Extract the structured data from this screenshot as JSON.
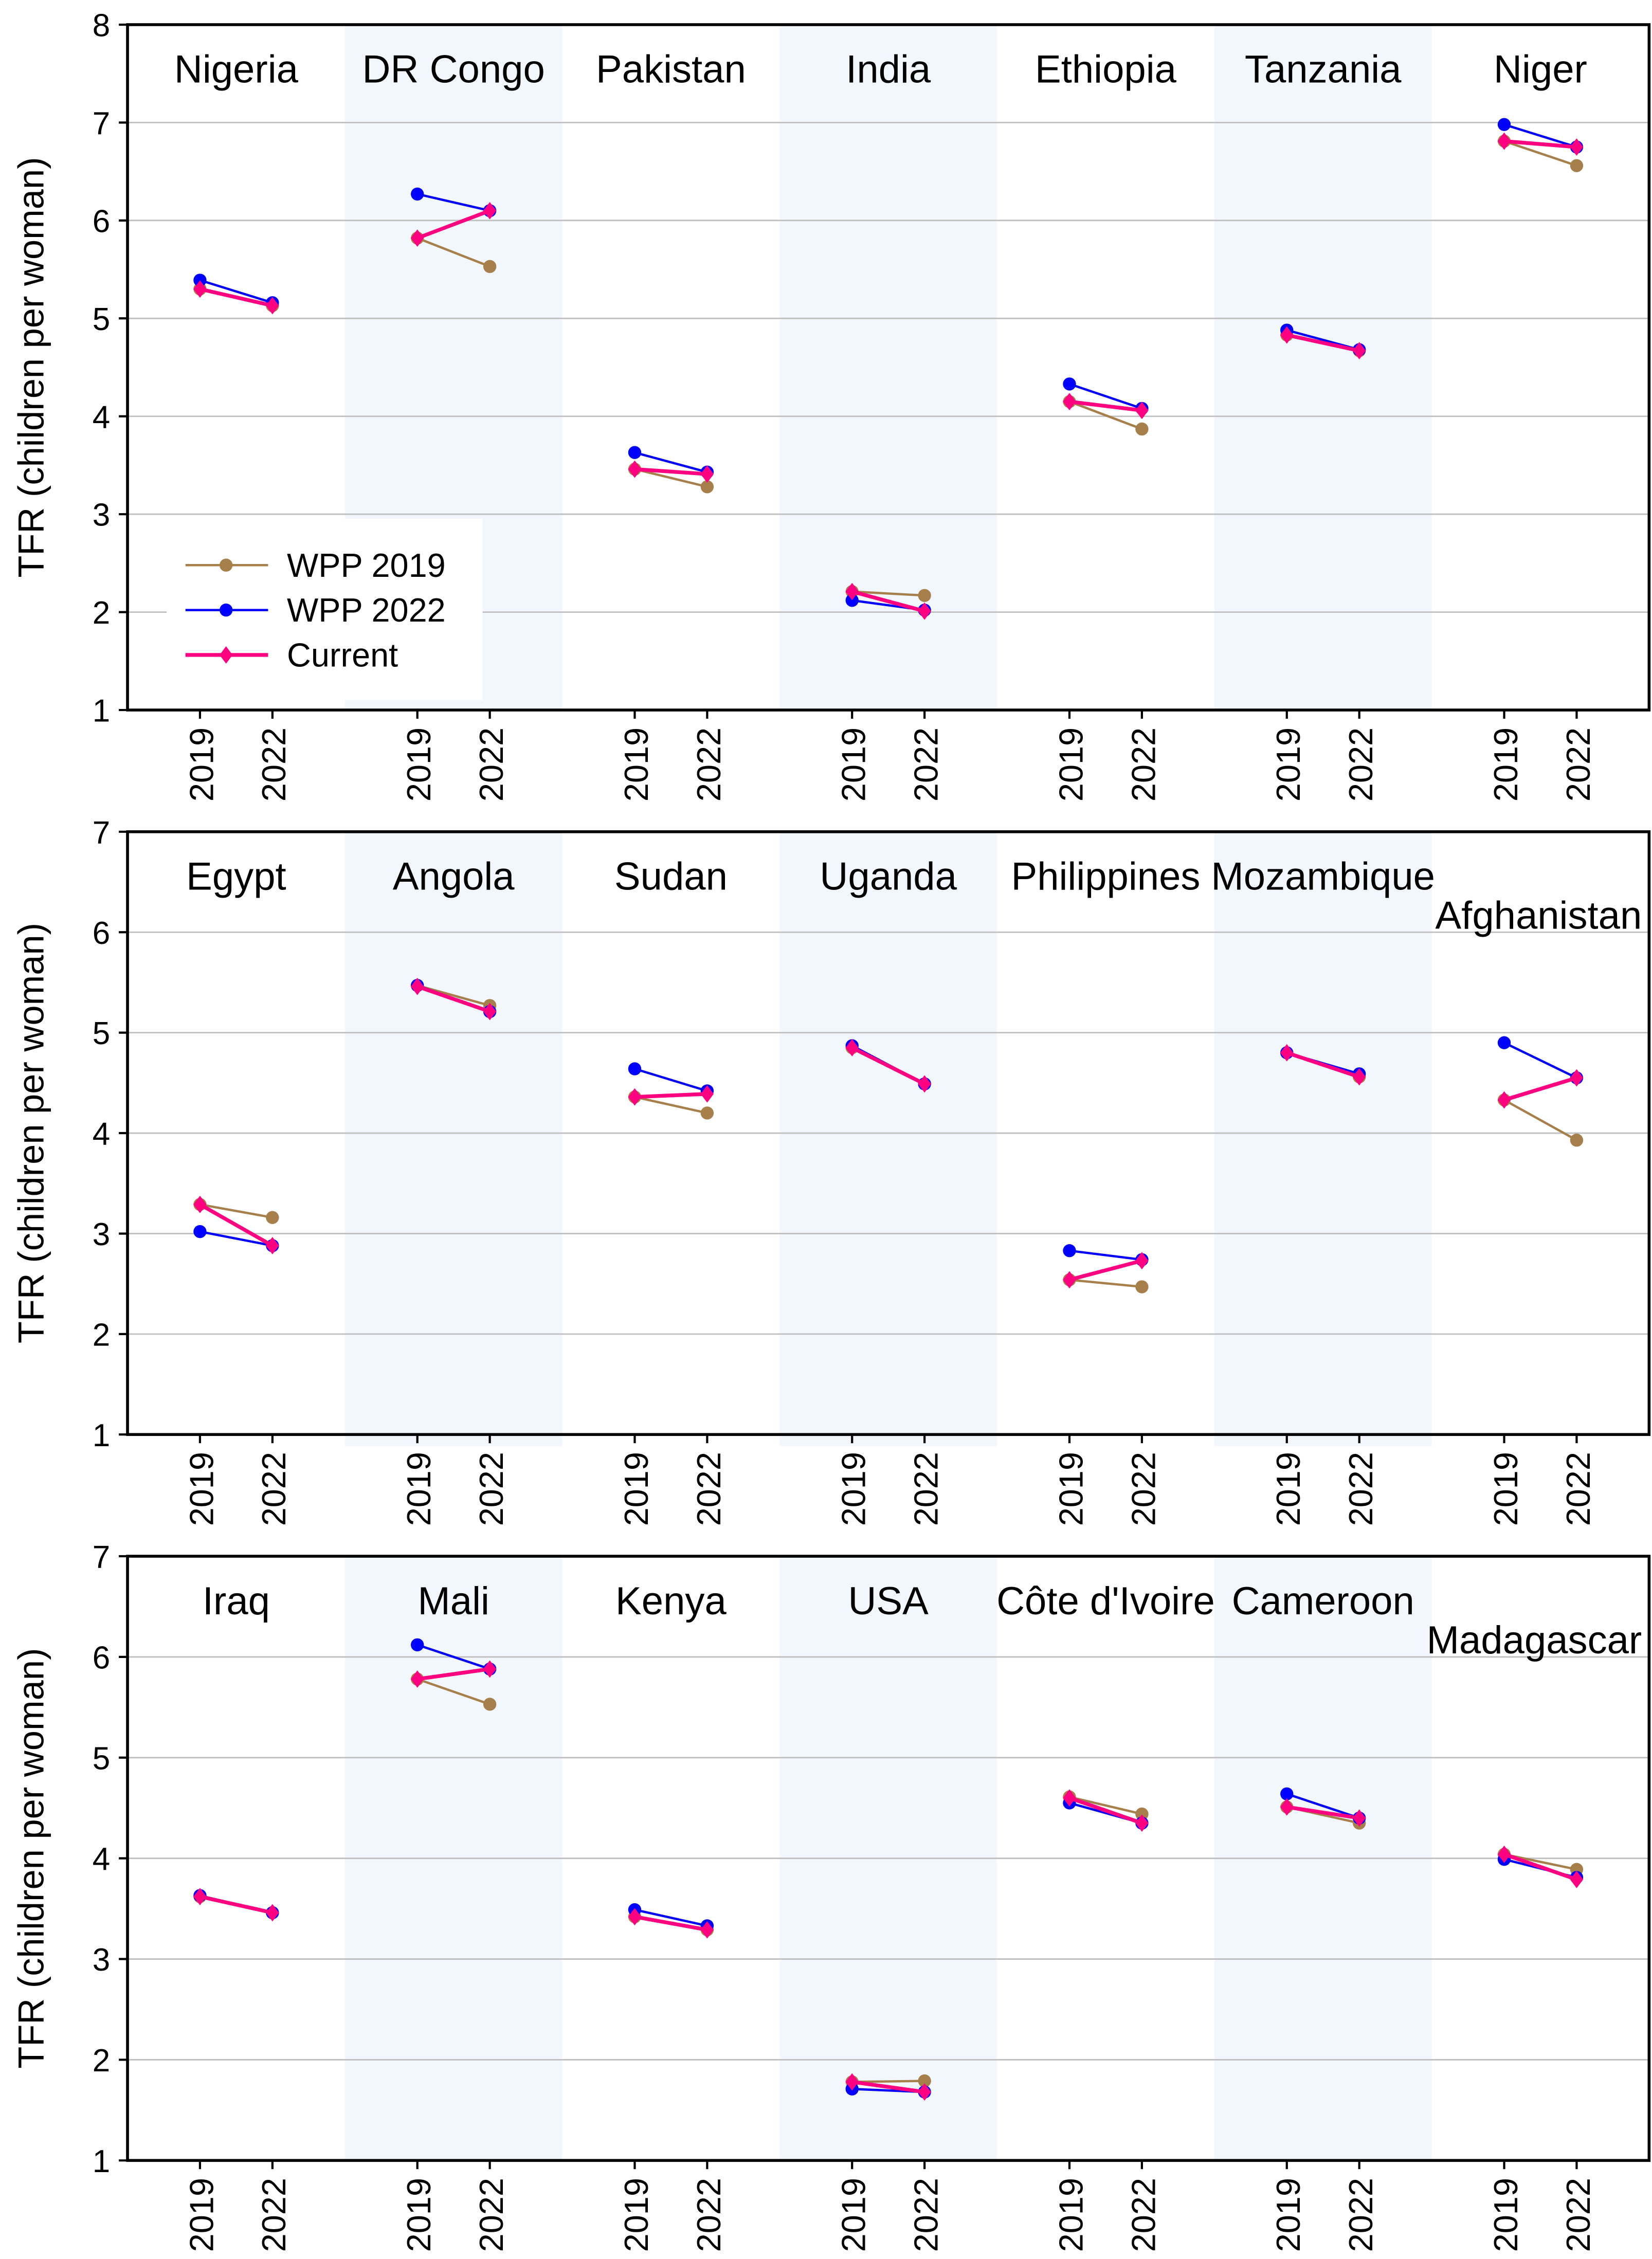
{
  "chart_data": {
    "type": "line",
    "ylabel": "TFR (children per woman)",
    "x_ticks": [
      "2019",
      "2022"
    ],
    "legend": {
      "placement": "bottom-left of first panel",
      "entries": [
        "WPP 2019",
        "WPP 2022",
        "Current"
      ]
    },
    "colors": {
      "WPP 2019": "#A67F4A",
      "WPP 2022": "#0000FF",
      "Current": "#FF0080",
      "shade": "#F2F7FE",
      "grid": "#BFBFBF"
    },
    "panels": [
      {
        "ylim": [
          1,
          8
        ],
        "yticks": [
          "1",
          "2",
          "3",
          "4",
          "5",
          "6",
          "7",
          "8"
        ],
        "countries": [
          {
            "name": "Nigeria",
            "wpp2019": [
              5.3,
              5.13
            ],
            "wpp2022": [
              5.39,
              5.16
            ],
            "current": [
              5.3,
              5.13
            ]
          },
          {
            "name": "DR Congo",
            "wpp2019": [
              5.82,
              5.53
            ],
            "wpp2022": [
              6.27,
              6.1
            ],
            "current": [
              5.82,
              6.1
            ]
          },
          {
            "name": "Pakistan",
            "wpp2019": [
              3.46,
              3.28
            ],
            "wpp2022": [
              3.63,
              3.43
            ],
            "current": [
              3.46,
              3.41
            ]
          },
          {
            "name": "India",
            "wpp2019": [
              2.21,
              2.17
            ],
            "wpp2022": [
              2.12,
              2.02
            ],
            "current": [
              2.21,
              2.01
            ]
          },
          {
            "name": "Ethiopia",
            "wpp2019": [
              4.15,
              3.87
            ],
            "wpp2022": [
              4.33,
              4.08
            ],
            "current": [
              4.15,
              4.06
            ]
          },
          {
            "name": "Tanzania",
            "wpp2019": [
              4.83,
              4.67
            ],
            "wpp2022": [
              4.88,
              4.68
            ],
            "current": [
              4.83,
              4.67
            ]
          },
          {
            "name": "Niger",
            "wpp2019": [
              6.81,
              6.56
            ],
            "wpp2022": [
              6.98,
              6.75
            ],
            "current": [
              6.81,
              6.75
            ]
          }
        ]
      },
      {
        "ylim": [
          1,
          7
        ],
        "yticks": [
          "1",
          "2",
          "3",
          "4",
          "5",
          "6",
          "7"
        ],
        "countries": [
          {
            "name": "Egypt",
            "wpp2019": [
              3.29,
              3.16
            ],
            "wpp2022": [
              3.02,
              2.88
            ],
            "current": [
              3.29,
              2.88
            ]
          },
          {
            "name": "Angola",
            "wpp2019": [
              5.47,
              5.27
            ],
            "wpp2022": [
              5.47,
              5.21
            ],
            "current": [
              5.46,
              5.21
            ]
          },
          {
            "name": "Sudan",
            "wpp2019": [
              4.36,
              4.2
            ],
            "wpp2022": [
              4.64,
              4.42
            ],
            "current": [
              4.36,
              4.39
            ]
          },
          {
            "name": "Uganda",
            "wpp2019": [
              4.85,
              4.49
            ],
            "wpp2022": [
              4.87,
              4.49
            ],
            "current": [
              4.85,
              4.49
            ]
          },
          {
            "name": "Philippines",
            "wpp2019": [
              2.54,
              2.47
            ],
            "wpp2022": [
              2.83,
              2.74
            ],
            "current": [
              2.54,
              2.73
            ]
          },
          {
            "name": "Mozambique",
            "wpp2019": [
              4.8,
              4.56
            ],
            "wpp2022": [
              4.8,
              4.59
            ],
            "current": [
              4.8,
              4.56
            ]
          },
          {
            "name": "Afghanistan",
            "wpp2019": [
              4.33,
              3.93
            ],
            "wpp2022": [
              4.9,
              4.55
            ],
            "current": [
              4.33,
              4.55
            ]
          }
        ]
      },
      {
        "ylim": [
          1,
          7
        ],
        "yticks": [
          "1",
          "2",
          "3",
          "4",
          "5",
          "6",
          "7"
        ],
        "countries": [
          {
            "name": "Iraq",
            "wpp2019": [
              3.62,
              3.46
            ],
            "wpp2022": [
              3.63,
              3.46
            ],
            "current": [
              3.62,
              3.46
            ]
          },
          {
            "name": "Mali",
            "wpp2019": [
              5.78,
              5.53
            ],
            "wpp2022": [
              6.12,
              5.88
            ],
            "current": [
              5.78,
              5.88
            ]
          },
          {
            "name": "Kenya",
            "wpp2019": [
              3.42,
              3.29
            ],
            "wpp2022": [
              3.49,
              3.33
            ],
            "current": [
              3.42,
              3.29
            ]
          },
          {
            "name": "USA",
            "wpp2019": [
              1.78,
              1.79
            ],
            "wpp2022": [
              1.71,
              1.68
            ],
            "current": [
              1.78,
              1.68
            ]
          },
          {
            "name": "Côte d'Ivoire",
            "wpp2019": [
              4.61,
              4.44
            ],
            "wpp2022": [
              4.55,
              4.35
            ],
            "current": [
              4.6,
              4.35
            ]
          },
          {
            "name": "Cameroon",
            "wpp2019": [
              4.51,
              4.35
            ],
            "wpp2022": [
              4.64,
              4.4
            ],
            "current": [
              4.51,
              4.4
            ]
          },
          {
            "name": "Madagascar",
            "wpp2019": [
              4.04,
              3.89
            ],
            "wpp2022": [
              3.99,
              3.81
            ],
            "current": [
              4.04,
              3.79
            ]
          }
        ]
      }
    ]
  }
}
